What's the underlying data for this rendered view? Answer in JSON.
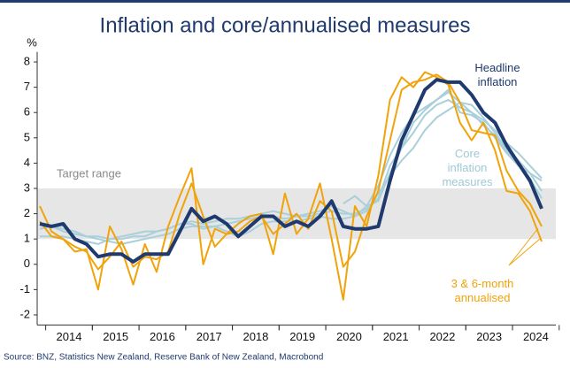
{
  "chart_data": {
    "type": "line",
    "title": "Inflation and core/annualised measures",
    "y_unit_label": "%",
    "source": "Source: BNZ, Statistics New Zealand, Reserve Bank of New Zealand, Macrobond",
    "target_range": {
      "label": "Target range",
      "range": [
        1,
        3
      ],
      "color": "#e6e6e6"
    },
    "categories": [
      null,
      null,
      "2014",
      null,
      null,
      null,
      "2015",
      null,
      null,
      null,
      "2016",
      null,
      null,
      null,
      "2017",
      null,
      null,
      null,
      "2018",
      null,
      null,
      null,
      "2019",
      null,
      null,
      null,
      "2020",
      null,
      null,
      null,
      "2021",
      null,
      null,
      null,
      "2022",
      null,
      null,
      null,
      "2023",
      null,
      null,
      null,
      "2024",
      null
    ],
    "ylim": [
      -2.4,
      8.4
    ],
    "yticks": [
      -2,
      -1,
      0,
      1,
      2,
      3,
      4,
      5,
      6,
      7,
      8
    ],
    "annotations": [
      {
        "lines": [
          "Headline",
          "inflation"
        ],
        "color": "#1f3a6e"
      },
      {
        "lines": [
          "Core",
          "inflation",
          "measures"
        ],
        "color": "#9ec9d6"
      },
      {
        "lines": [
          "3 & 6-month",
          "annualised"
        ],
        "color": "#f0a30a"
      }
    ],
    "series": [
      {
        "color": "#a9cfdb",
        "width": 2,
        "values": [
          1.4,
          1.5,
          1.4,
          1.3,
          1.1,
          1.0,
          0.9,
          0.8,
          0.9,
          1.0,
          1.1,
          1.2,
          1.4,
          1.5,
          1.5,
          1.5,
          1.6,
          1.7,
          1.8,
          1.9,
          1.9,
          1.8,
          1.9,
          1.9,
          2.0,
          2.1,
          2.0,
          2.0,
          2.2,
          2.6,
          3.9,
          4.6,
          5.2,
          5.9,
          6.3,
          6.5,
          6.2,
          6.0,
          5.7,
          5.3,
          4.8,
          4.4,
          3.9,
          3.4
        ]
      },
      {
        "color": "#a9cfdb",
        "width": 2,
        "values": [
          1.1,
          1.1,
          1.1,
          1.0,
          0.9,
          0.8,
          1.0,
          1.0,
          1.1,
          1.1,
          1.3,
          1.4,
          1.6,
          1.6,
          1.4,
          1.5,
          1.3,
          1.1,
          1.3,
          1.6,
          1.7,
          1.7,
          1.7,
          1.8,
          1.9,
          1.8,
          1.8,
          1.9,
          2.1,
          2.8,
          3.5,
          4.1,
          4.6,
          5.3,
          5.8,
          6.1,
          6.4,
          6.0,
          5.5,
          5.1,
          4.5,
          4.0,
          3.4,
          2.6
        ]
      },
      {
        "color": "#a9cfdb",
        "width": 2,
        "values": [
          1.6,
          1.5,
          1.3,
          1.2,
          1.1,
          1.1,
          1.0,
          1.1,
          1.2,
          1.3,
          1.3,
          1.4,
          1.6,
          1.7,
          1.6,
          1.7,
          1.8,
          1.8,
          1.9,
          2.0,
          2.1,
          2.0,
          1.9,
          2.0,
          2.1,
          2.3,
          2.1,
          1.9,
          2.3,
          3.1,
          4.3,
          5.2,
          5.9,
          6.2,
          6.5,
          6.9,
          6.0,
          5.9,
          5.6,
          5.0,
          4.4,
          3.9,
          3.6,
          3.3
        ]
      },
      {
        "color": "#a9cfdb",
        "width": 2,
        "values": [
          null,
          null,
          null,
          null,
          null,
          null,
          null,
          null,
          null,
          null,
          null,
          null,
          null,
          null,
          null,
          null,
          null,
          null,
          null,
          null,
          null,
          null,
          null,
          null,
          null,
          null,
          2.4,
          2.7,
          2.3,
          2.5,
          3.6,
          4.6,
          5.6,
          6.1,
          6.5,
          6.8,
          6.4,
          6.3,
          5.8,
          5.2,
          4.6,
          4.1,
          3.6,
          2.9
        ]
      },
      {
        "color": "#f0a30a",
        "width": 2,
        "values": [
          1.7,
          1.1,
          1.0,
          0.7,
          0.5,
          -0.2,
          0.3,
          0.9,
          -0.1,
          0.3,
          0.2,
          0.5,
          2.0,
          3.2,
          1.9,
          0.7,
          1.2,
          1.3,
          1.7,
          1.9,
          1.2,
          1.6,
          2.0,
          1.4,
          2.5,
          2.1,
          -0.1,
          0.5,
          1.9,
          2.9,
          4.9,
          6.9,
          7.2,
          7.3,
          7.5,
          7.2,
          6.4,
          5.3,
          5.2,
          5.1,
          3.7,
          2.9,
          2.4,
          1.5
        ]
      },
      {
        "color": "#f0a30a",
        "width": 2,
        "values": [
          2.3,
          1.3,
          1.0,
          0.5,
          0.6,
          -1.0,
          1.5,
          0.6,
          -0.8,
          0.8,
          -0.3,
          1.5,
          2.7,
          3.8,
          0.0,
          1.4,
          1.2,
          1.6,
          1.9,
          2.0,
          0.4,
          2.8,
          1.2,
          1.8,
          3.2,
          1.0,
          -1.4,
          2.3,
          1.5,
          3.5,
          6.5,
          7.4,
          7.0,
          7.6,
          7.4,
          7.1,
          5.6,
          4.9,
          5.6,
          4.5,
          2.9,
          2.8,
          2.1,
          0.9
        ]
      },
      {
        "color": "#1f3a6e",
        "width": 4,
        "values": [
          1.6,
          1.5,
          1.6,
          1.0,
          0.8,
          0.3,
          0.4,
          0.4,
          0.1,
          0.4,
          0.4,
          0.4,
          1.3,
          2.2,
          1.7,
          1.9,
          1.6,
          1.1,
          1.5,
          1.9,
          1.9,
          1.5,
          1.7,
          1.5,
          1.9,
          2.5,
          1.5,
          1.4,
          1.4,
          1.5,
          3.3,
          4.9,
          5.9,
          6.9,
          7.3,
          7.2,
          7.2,
          6.7,
          6.0,
          5.6,
          4.7,
          4.0,
          3.3,
          2.2
        ]
      }
    ]
  }
}
